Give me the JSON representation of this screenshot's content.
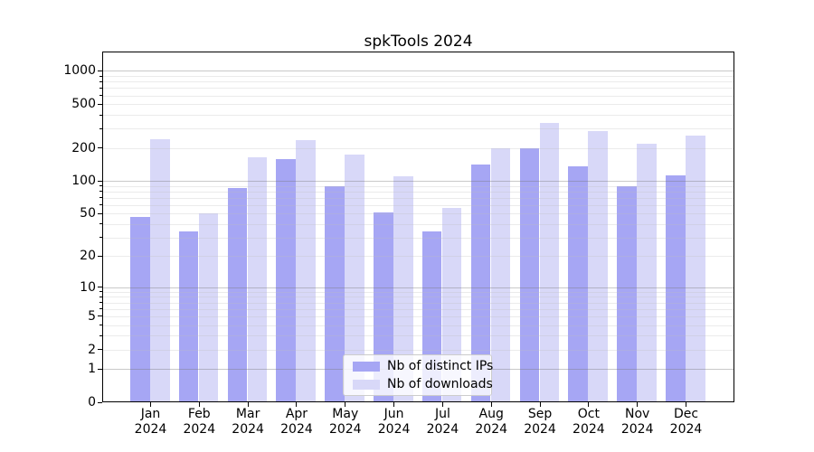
{
  "title": "spkTools 2024",
  "chart_data": {
    "type": "bar",
    "title": "spkTools 2024",
    "yscale": "symlog",
    "ylim": [
      0,
      1500
    ],
    "grid": true,
    "legend_position": "lower center",
    "ytick_labels": [
      "1000",
      "500",
      "200",
      "100",
      "50",
      "20",
      "10",
      "5",
      "2",
      "1",
      "0"
    ],
    "ytick_values": [
      1000,
      500,
      200,
      100,
      50,
      20,
      10,
      5,
      2,
      1,
      0
    ],
    "categories": [
      "Jan 2024",
      "Feb 2024",
      "Mar 2024",
      "Apr 2024",
      "May 2024",
      "Jun 2024",
      "Jul 2024",
      "Aug 2024",
      "Sep 2024",
      "Oct 2024",
      "Nov 2024",
      "Dec 2024"
    ],
    "series": [
      {
        "name": "Nb of distinct IPs",
        "color": "#a6a6f4",
        "values": [
          47,
          34,
          86,
          157,
          90,
          51,
          34,
          142,
          200,
          135,
          90,
          112
        ]
      },
      {
        "name": "Nb of downloads",
        "color": "#d8d8f8",
        "values": [
          238,
          50,
          163,
          235,
          174,
          110,
          57,
          200,
          337,
          285,
          220,
          260
        ]
      }
    ]
  }
}
